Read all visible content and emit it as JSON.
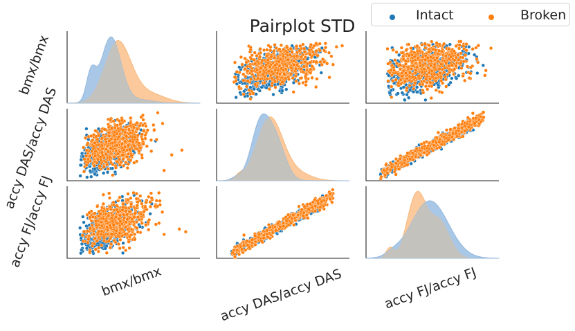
{
  "chart_data": {
    "type": "pairplot",
    "title": "Pairplot STD",
    "variables": [
      "bmx/bmx",
      "accy DAS/accy DAS",
      "accy FJ/accy FJ"
    ],
    "row_labels": [
      "bmx/bmx",
      "accy DAS/accy DAS",
      "accy FJ/accy FJ"
    ],
    "col_labels": [
      "bmx/bmx",
      "accy DAS/accy DAS",
      "accy FJ/accy FJ"
    ],
    "hue": [
      "Intact",
      "Broken"
    ],
    "legend": {
      "entries": [
        "Intact",
        "Broken"
      ],
      "placement": "top-right"
    },
    "colors": {
      "Intact": "#1f77b4",
      "Broken": "#ff7f0e",
      "Intact_fill": "#a9c7e6",
      "Broken_fill": "#fbc99b",
      "overlap": "#c4c2bd"
    },
    "diagonal": "kde",
    "off_diagonal": "scatter",
    "grid": false,
    "ticks_shown": false,
    "tick_label_rotation_deg": -20
  }
}
